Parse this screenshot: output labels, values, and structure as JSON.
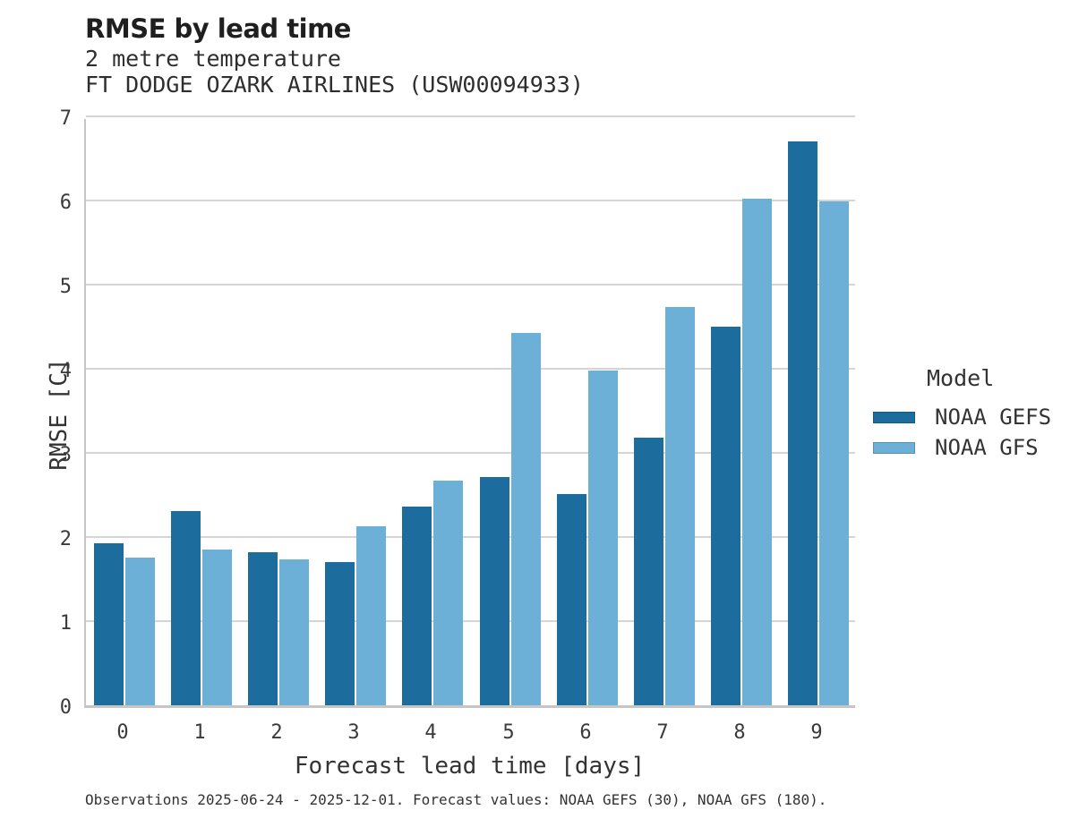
{
  "header": {
    "title": "RMSE by lead time",
    "subtitle1": "2 metre temperature",
    "subtitle2": "FT DODGE OZARK AIRLINES (USW00094933)"
  },
  "chart_data": {
    "type": "bar",
    "title": "RMSE by lead time",
    "subtitle": [
      "2 metre temperature",
      "FT DODGE OZARK AIRLINES (USW00094933)"
    ],
    "categories": [
      "0",
      "1",
      "2",
      "3",
      "4",
      "5",
      "6",
      "7",
      "8",
      "9"
    ],
    "series": [
      {
        "name": "NOAA GEFS",
        "color": "#1c6d9d",
        "values": [
          1.93,
          2.31,
          1.82,
          1.7,
          2.36,
          2.71,
          2.51,
          3.18,
          4.5,
          6.7
        ]
      },
      {
        "name": "NOAA GFS",
        "color": "#6cb0d7",
        "values": [
          1.75,
          1.85,
          1.73,
          2.13,
          2.67,
          4.43,
          3.98,
          4.73,
          6.02,
          5.99
        ]
      }
    ],
    "xlabel": "Forecast lead time [days]",
    "ylabel": "RMSE [C]",
    "ylim": [
      0,
      7
    ],
    "yticks": [
      0,
      1,
      2,
      3,
      4,
      5,
      6,
      7
    ],
    "grid": "horizontal-major-only",
    "legend_title": "Model",
    "legend_position": "right",
    "caption": "Observations 2025-06-24 - 2025-12-01. Forecast values: NOAA GEFS (30), NOAA GFS (180)."
  }
}
